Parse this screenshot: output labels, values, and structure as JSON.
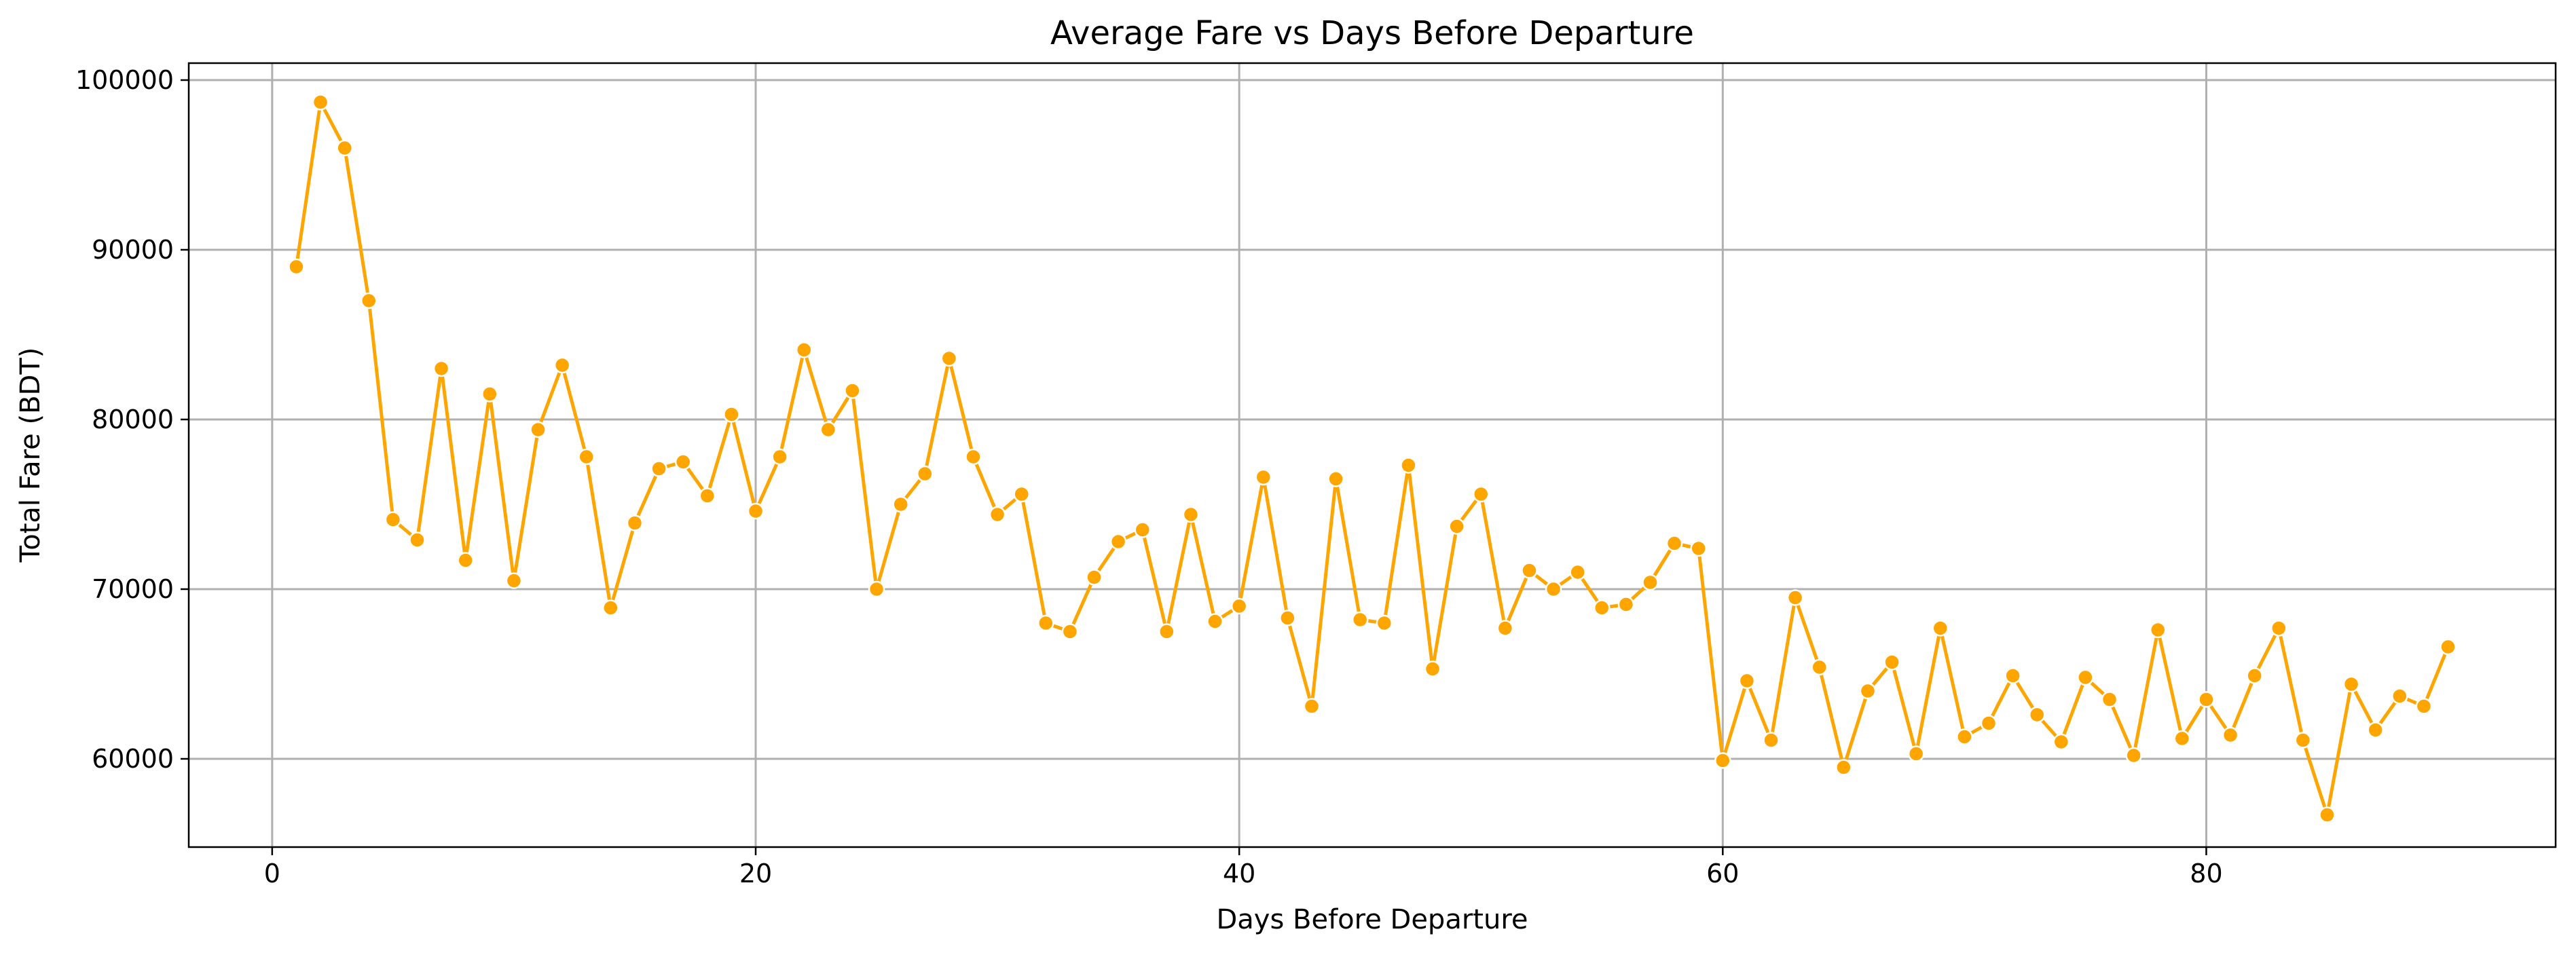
{
  "chart_data": {
    "type": "line",
    "title": "Average Fare vs Days Before Departure",
    "xlabel": "Days Before Departure",
    "ylabel": "Total Fare (BDT)",
    "xlim": [
      -3.45,
      94.45
    ],
    "ylim": [
      54800,
      101000
    ],
    "xticks": [
      0,
      20,
      40,
      60,
      80
    ],
    "yticks": [
      60000,
      70000,
      80000,
      90000,
      100000
    ],
    "grid": true,
    "legend": "none",
    "color": "#FFA500",
    "marker": "circle",
    "x": [
      1,
      2,
      3,
      4,
      5,
      6,
      7,
      8,
      9,
      10,
      11,
      12,
      13,
      14,
      15,
      16,
      17,
      18,
      19,
      20,
      21,
      22,
      23,
      24,
      25,
      26,
      27,
      28,
      29,
      30,
      31,
      32,
      33,
      34,
      35,
      36,
      37,
      38,
      39,
      40,
      41,
      42,
      43,
      44,
      45,
      46,
      47,
      48,
      49,
      50,
      51,
      52,
      53,
      54,
      55,
      56,
      57,
      58,
      59,
      60,
      61,
      62,
      63,
      64,
      65,
      66,
      67,
      68,
      69,
      70,
      71,
      72,
      73,
      74,
      75,
      76,
      77,
      78,
      79,
      80,
      81,
      82,
      83,
      84,
      85,
      86,
      87,
      88,
      89,
      90
    ],
    "y": [
      89000,
      98700,
      96000,
      87000,
      74100,
      72900,
      83000,
      71700,
      81500,
      70500,
      79400,
      83200,
      77800,
      68900,
      73900,
      77100,
      77500,
      75500,
      80300,
      74600,
      77800,
      84100,
      79400,
      81700,
      70000,
      75000,
      76800,
      83600,
      77800,
      74400,
      75600,
      68000,
      67500,
      70700,
      72800,
      73500,
      67500,
      74400,
      68100,
      69000,
      76600,
      68300,
      63100,
      76500,
      68200,
      68000,
      77300,
      65300,
      73700,
      75600,
      67700,
      71100,
      70000,
      71000,
      68900,
      69100,
      70400,
      72700,
      72400,
      59900,
      64600,
      61100,
      69500,
      65400,
      59500,
      64000,
      65700,
      60300,
      67700,
      61300,
      62100,
      64900,
      62600,
      61000,
      64800,
      63500,
      60200,
      67600,
      61200,
      63500,
      61400,
      64900,
      67700,
      61100,
      56700,
      64400,
      61700,
      63700,
      63100,
      66600
    ]
  }
}
